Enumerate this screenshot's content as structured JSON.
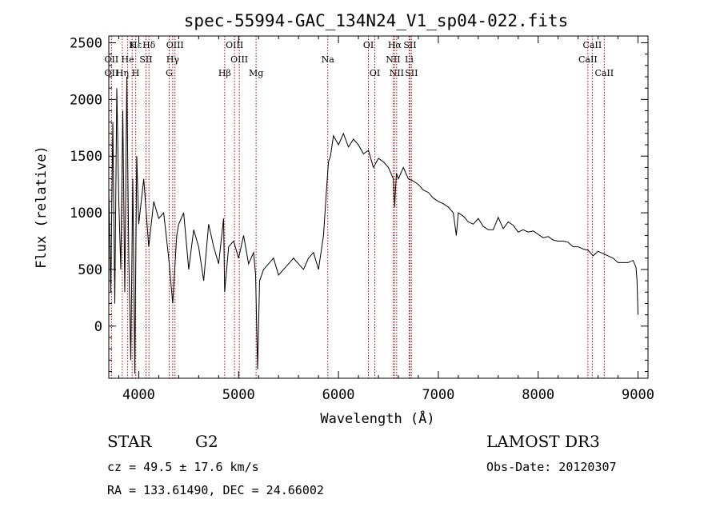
{
  "chart_data": {
    "type": "line",
    "title": "spec-55994-GAC_134N24_V1_sp04-022.fits",
    "xlabel": "Wavelength (Å)",
    "ylabel": "Flux (relative)",
    "xlim": [
      3700,
      9100
    ],
    "ylim": [
      -460,
      2560
    ],
    "xticks": [
      4000,
      5000,
      6000,
      7000,
      8000,
      9000
    ],
    "yticks": [
      0,
      500,
      1000,
      1500,
      2000,
      2500
    ],
    "series": [
      {
        "name": "flux",
        "x": [
          3700,
          3720,
          3740,
          3760,
          3780,
          3800,
          3820,
          3840,
          3860,
          3880,
          3900,
          3920,
          3940,
          3960,
          3980,
          4000,
          4050,
          4100,
          4150,
          4200,
          4250,
          4300,
          4340,
          4380,
          4400,
          4450,
          4500,
          4550,
          4600,
          4650,
          4700,
          4750,
          4800,
          4850,
          4860,
          4900,
          4950,
          5000,
          5050,
          5100,
          5150,
          5170,
          5190,
          5210,
          5250,
          5300,
          5350,
          5400,
          5450,
          5500,
          5550,
          5600,
          5650,
          5700,
          5750,
          5800,
          5850,
          5880,
          5900,
          5920,
          5950,
          6000,
          6050,
          6100,
          6150,
          6200,
          6250,
          6300,
          6350,
          6400,
          6450,
          6500,
          6550,
          6563,
          6580,
          6600,
          6650,
          6700,
          6750,
          6800,
          6850,
          6900,
          6950,
          7000,
          7050,
          7100,
          7150,
          7180,
          7200,
          7250,
          7300,
          7350,
          7400,
          7450,
          7500,
          7550,
          7600,
          7650,
          7700,
          7750,
          7800,
          7850,
          7900,
          7950,
          8000,
          8050,
          8100,
          8150,
          8200,
          8250,
          8300,
          8350,
          8400,
          8450,
          8500,
          8550,
          8600,
          8650,
          8700,
          8750,
          8800,
          8850,
          8900,
          8950,
          8980,
          8990,
          9000
        ],
        "y": [
          1200,
          300,
          1800,
          200,
          2100,
          1100,
          500,
          1900,
          300,
          2200,
          600,
          -300,
          1300,
          -420,
          1500,
          900,
          1300,
          700,
          1100,
          950,
          1000,
          600,
          200,
          800,
          900,
          1000,
          500,
          850,
          700,
          400,
          900,
          700,
          550,
          950,
          300,
          700,
          750,
          600,
          800,
          550,
          650,
          450,
          -380,
          400,
          500,
          550,
          600,
          450,
          500,
          550,
          600,
          550,
          500,
          600,
          650,
          500,
          800,
          1200,
          1450,
          1500,
          1680,
          1600,
          1700,
          1580,
          1650,
          1600,
          1520,
          1550,
          1400,
          1480,
          1450,
          1400,
          1300,
          1050,
          1350,
          1300,
          1400,
          1300,
          1280,
          1250,
          1200,
          1180,
          1130,
          1100,
          1080,
          1050,
          1000,
          800,
          1000,
          970,
          920,
          900,
          950,
          880,
          850,
          850,
          960,
          860,
          920,
          890,
          830,
          850,
          830,
          840,
          810,
          780,
          790,
          760,
          750,
          750,
          740,
          700,
          700,
          680,
          670,
          620,
          660,
          640,
          620,
          600,
          560,
          560,
          560,
          580,
          520,
          400,
          100
        ]
      }
    ],
    "line_markers": [
      {
        "label": "Hε",
        "wavelength": 3970,
        "row": 0
      },
      {
        "label": "K",
        "wavelength": 3934,
        "row": 0
      },
      {
        "label": "Hδ",
        "wavelength": 4102,
        "row": 0
      },
      {
        "label": "OIII",
        "wavelength": 4363,
        "row": 0
      },
      {
        "label": "OIII",
        "wavelength": 4959,
        "row": 0
      },
      {
        "label": "OI",
        "wavelength": 6300,
        "row": 0
      },
      {
        "label": "Hα",
        "wavelength": 6563,
        "row": 0
      },
      {
        "label": "SII",
        "wavelength": 6716,
        "row": 0
      },
      {
        "label": "CaII",
        "wavelength": 8542,
        "row": 0
      },
      {
        "label": "OII",
        "wavelength": 3727,
        "row": 1
      },
      {
        "label": "He",
        "wavelength": 3889,
        "row": 1
      },
      {
        "label": "SII",
        "wavelength": 4072,
        "row": 1
      },
      {
        "label": "Hγ",
        "wavelength": 4340,
        "row": 1
      },
      {
        "label": "OIII",
        "wavelength": 5007,
        "row": 1
      },
      {
        "label": "Na",
        "wavelength": 5893,
        "row": 1
      },
      {
        "label": "NII",
        "wavelength": 6548,
        "row": 1
      },
      {
        "label": "Li",
        "wavelength": 6708,
        "row": 1
      },
      {
        "label": "CaII",
        "wavelength": 8498,
        "row": 1
      },
      {
        "label": "OII",
        "wavelength": 3727,
        "row": 2
      },
      {
        "label": "Hη",
        "wavelength": 3835,
        "row": 2
      },
      {
        "label": "H",
        "wavelength": 3969,
        "row": 2
      },
      {
        "label": "G",
        "wavelength": 4305,
        "row": 2
      },
      {
        "label": "Hβ",
        "wavelength": 4861,
        "row": 2
      },
      {
        "label": "Mg",
        "wavelength": 5175,
        "row": 2
      },
      {
        "label": "OI",
        "wavelength": 6364,
        "row": 2
      },
      {
        "label": "NII",
        "wavelength": 6583,
        "row": 2
      },
      {
        "label": "SII",
        "wavelength": 6731,
        "row": 2
      },
      {
        "label": "CaII",
        "wavelength": 8662,
        "row": 2
      }
    ],
    "colors": {
      "spectrum": "#000000",
      "markers": "#c00000",
      "axes": "#000000"
    }
  },
  "info": {
    "object_type": "STAR",
    "subclass": "G2",
    "survey": "LAMOST DR3",
    "redshift": "cz = 49.5 ± 17.6 km/s",
    "obs_date": "Obs-Date: 20120307",
    "coords": "RA = 133.61490, DEC =  24.66002"
  }
}
